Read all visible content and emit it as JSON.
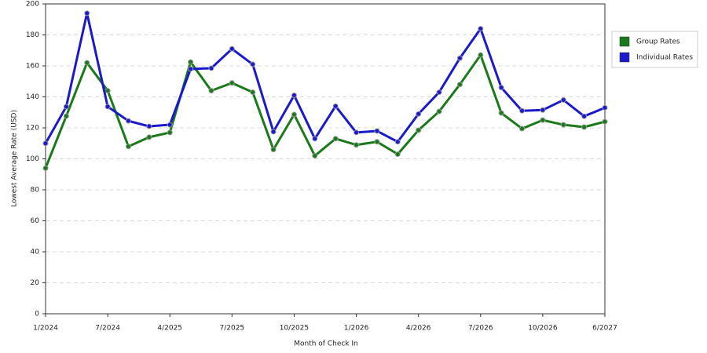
{
  "chart_data": {
    "type": "line",
    "x_label": "Month of Check In",
    "y_label": "Lowest Average Rate (USD)",
    "categories": [
      "1/2024",
      null,
      null,
      "7/2024",
      null,
      null,
      "4/2025",
      null,
      null,
      "7/2025",
      null,
      null,
      "10/2025",
      null,
      null,
      "1/2026",
      null,
      null,
      "4/2026",
      null,
      null,
      "7/2026",
      null,
      null,
      "10/2026",
      null,
      null,
      "6/2027"
    ],
    "series": [
      {
        "name": "Group Rates",
        "color": "#1a7a1a",
        "values": [
          94,
          127.6,
          162,
          144,
          108,
          114,
          117,
          162.5,
          144,
          149,
          143,
          106,
          128.6,
          102,
          113,
          109,
          111,
          103,
          118.5,
          130.6,
          148,
          167,
          129.6,
          119.5,
          125,
          122,
          120.5,
          124
        ]
      },
      {
        "name": "Individual Rates",
        "color": "#1a1acc",
        "values": [
          110,
          133.7,
          194,
          133.7,
          124.5,
          121,
          122,
          158,
          158.5,
          171,
          161,
          117.5,
          141,
          113,
          134,
          117,
          118,
          111,
          129,
          143,
          165,
          184,
          146,
          131,
          131.5,
          138,
          127.5,
          133
        ]
      }
    ],
    "ylim": [
      0,
      200
    ],
    "yticks": [
      0,
      20,
      40,
      60,
      80,
      100,
      120,
      140,
      160,
      180,
      200
    ],
    "grid": true,
    "legend": "right"
  }
}
